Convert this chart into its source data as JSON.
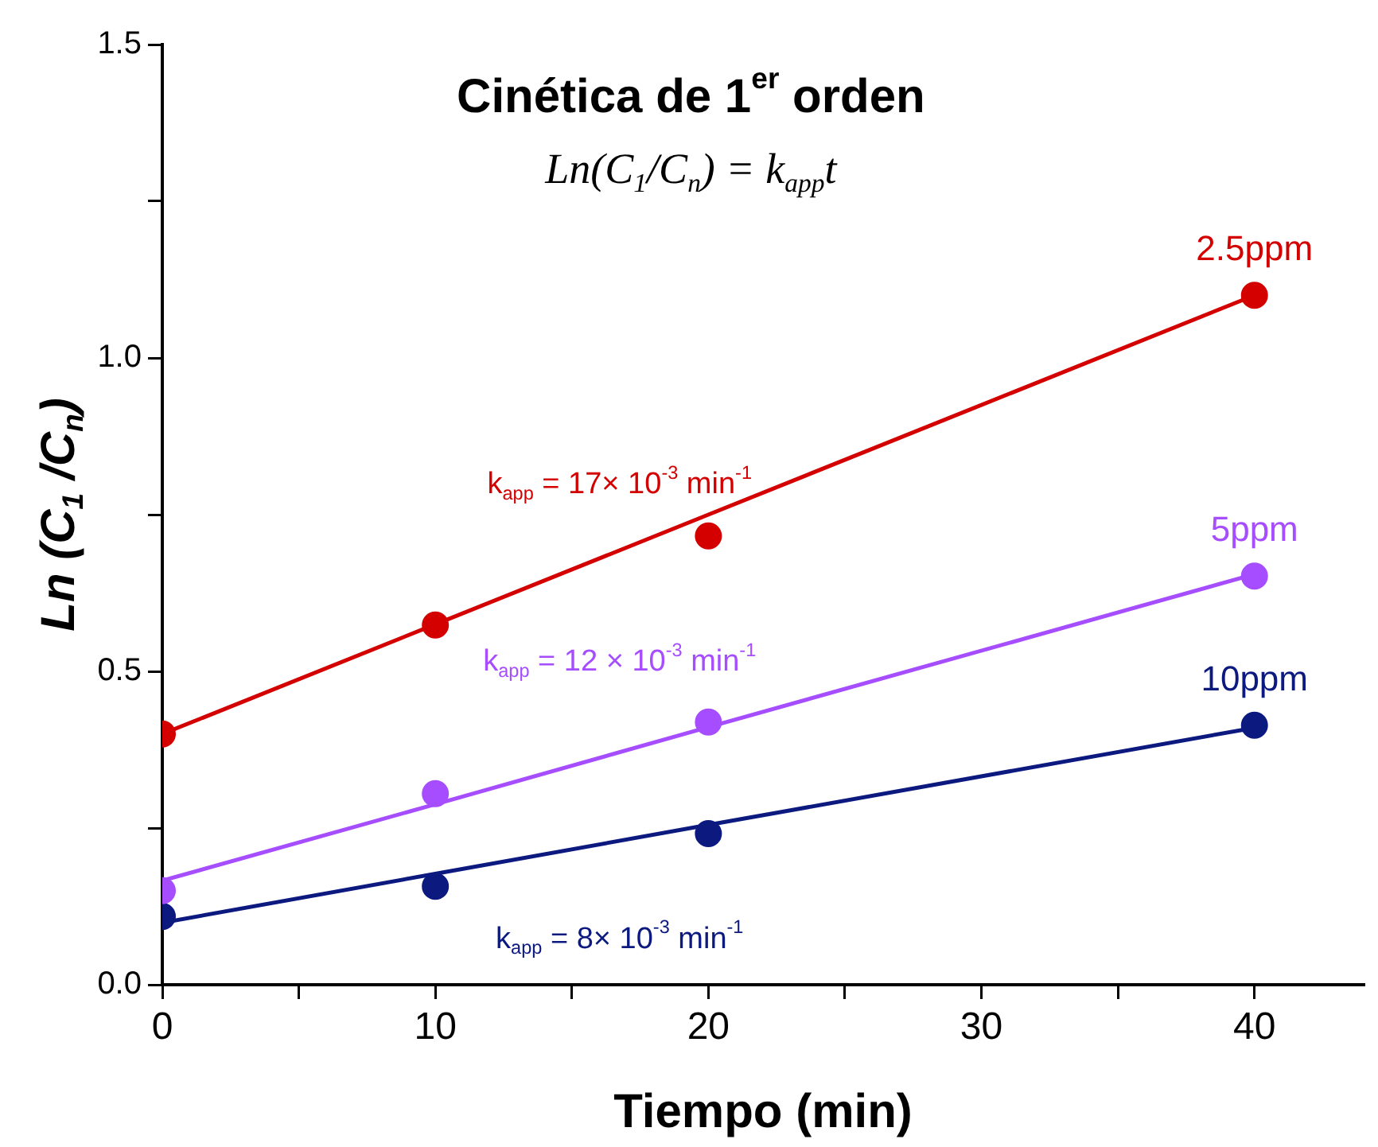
{
  "chart_data": {
    "type": "scatter",
    "title": "Cinética de 1$^{er}$ orden",
    "subtitle": "Ln(C$_{1}$/C$_{n}$) = k$_{app}$t",
    "xlabel": "Tiempo (min)",
    "ylabel": "Ln (C$_{1}$ /C$_{n}$)",
    "x": [
      0,
      10,
      20,
      40
    ],
    "series": [
      {
        "name": "2.5ppm",
        "color": "#d40000",
        "values": [
          0.4,
          0.574,
          0.716,
          1.1
        ]
      },
      {
        "name": "5ppm",
        "color": "#a64dff",
        "values": [
          0.15,
          0.305,
          0.419,
          0.652
        ]
      },
      {
        "name": "10ppm",
        "color": "#0c1a80",
        "values": [
          0.109,
          0.157,
          0.241,
          0.414
        ]
      },
      {
        "type": "line",
        "color": "#d40000",
        "marker": "none",
        "values": [
          0.4,
          0.575,
          0.75,
          1.1
        ]
      },
      {
        "type": "line",
        "color": "#a64dff",
        "marker": "none",
        "values": [
          0.166,
          0.288,
          0.411,
          0.655
        ]
      },
      {
        "type": "line",
        "color": "#0c1a80",
        "marker": "none",
        "values": [
          0.099,
          0.177,
          0.255,
          0.41
        ]
      }
    ],
    "annotations": [
      "k$_{app}$ = 17× 10$^{-3}$ min$^{-1}$",
      "k$_{app}$ = 12 × 10$^{-3}$ min$^{-1}$",
      "k$_{app}$ = 8× 10$^{-3}$ min$^{-1}$"
    ],
    "xlim": [
      0,
      44
    ],
    "xticks": [
      0,
      {
        "value": 5,
        "label": null
      },
      10,
      {
        "value": 15,
        "label": null
      },
      20,
      {
        "value": 25,
        "label": null
      },
      30,
      {
        "value": 35,
        "label": null
      },
      40
    ],
    "ylim": [
      0,
      1.5
    ],
    "yticks": [
      {
        "value": 0,
        "label": "0.0"
      },
      {
        "value": 0.25,
        "label": null
      },
      {
        "value": 0.5,
        "label": "0.5"
      },
      {
        "value": 0.75,
        "label": null
      },
      {
        "value": 1,
        "label": "1.0"
      },
      {
        "value": 1.25,
        "label": null
      },
      {
        "value": 1.5,
        "label": "1.5"
      }
    ],
    "grid": false,
    "legend": false,
    "marker": "circle",
    "line_style": "solid"
  }
}
